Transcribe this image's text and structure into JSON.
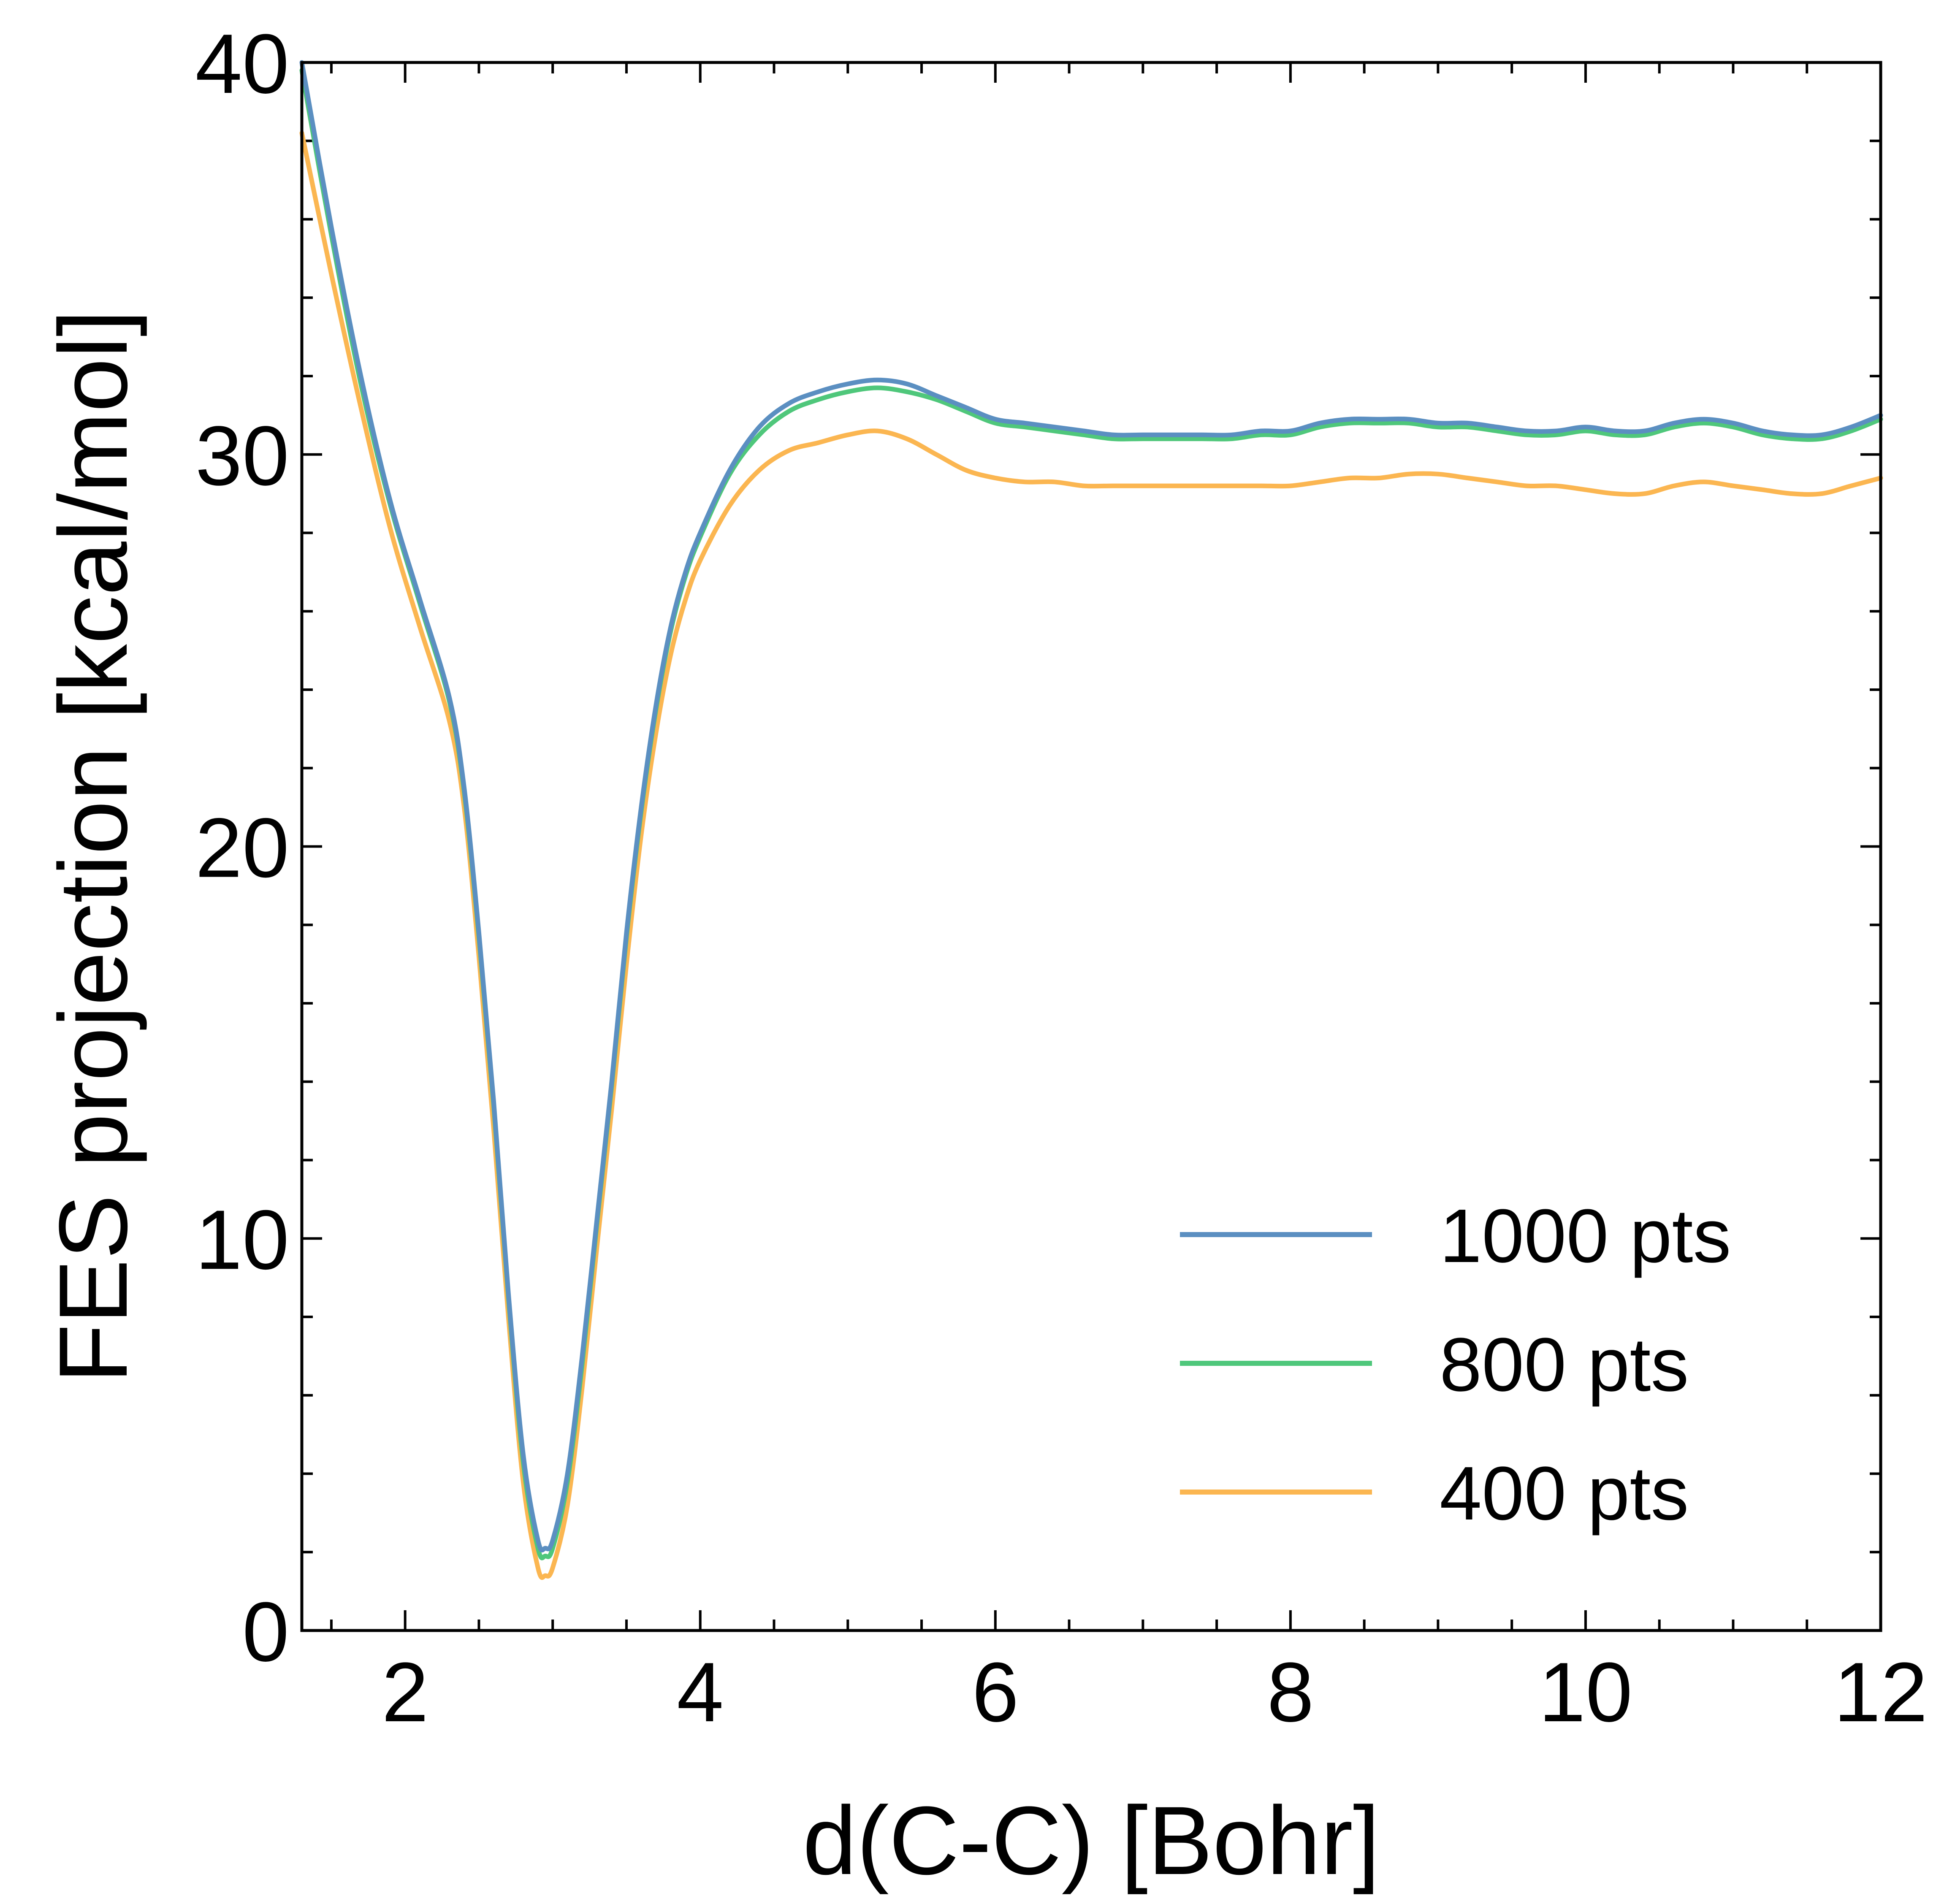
{
  "chart_data": {
    "type": "line",
    "title": "",
    "xlabel": "d(C-C) [Bohr]",
    "ylabel": "FES projection [kcal/mol]",
    "xlim": [
      1.3,
      12
    ],
    "ylim": [
      0,
      40
    ],
    "xticks": [
      2,
      4,
      6,
      8,
      10,
      12
    ],
    "yticks": [
      0,
      10,
      20,
      30,
      40
    ],
    "x_minor_step": 0.5,
    "y_minor_step": 2,
    "grid": false,
    "legend_position": "lower-right",
    "series": [
      {
        "name": "1000 pts",
        "color": "#5b8fc1",
        "points": [
          [
            1.3,
            40.0
          ],
          [
            1.5,
            35.8
          ],
          [
            1.7,
            32.0
          ],
          [
            1.9,
            28.8
          ],
          [
            2.1,
            26.3
          ],
          [
            2.3,
            23.8
          ],
          [
            2.4,
            21.5
          ],
          [
            2.5,
            17.8
          ],
          [
            2.6,
            13.5
          ],
          [
            2.7,
            8.6
          ],
          [
            2.8,
            4.5
          ],
          [
            2.9,
            2.3
          ],
          [
            2.95,
            2.1
          ],
          [
            3.0,
            2.3
          ],
          [
            3.1,
            4.0
          ],
          [
            3.2,
            7.0
          ],
          [
            3.3,
            10.5
          ],
          [
            3.4,
            14.0
          ],
          [
            3.5,
            17.8
          ],
          [
            3.6,
            21.0
          ],
          [
            3.7,
            23.6
          ],
          [
            3.8,
            25.6
          ],
          [
            3.9,
            27.0
          ],
          [
            4.0,
            28.0
          ],
          [
            4.2,
            29.6
          ],
          [
            4.4,
            30.7
          ],
          [
            4.6,
            31.3
          ],
          [
            4.8,
            31.6
          ],
          [
            5.0,
            31.8
          ],
          [
            5.2,
            31.9
          ],
          [
            5.4,
            31.8
          ],
          [
            5.6,
            31.5
          ],
          [
            5.8,
            31.2
          ],
          [
            6.0,
            30.9
          ],
          [
            6.2,
            30.8
          ],
          [
            6.4,
            30.7
          ],
          [
            6.6,
            30.6
          ],
          [
            6.8,
            30.5
          ],
          [
            7.0,
            30.5
          ],
          [
            7.2,
            30.5
          ],
          [
            7.4,
            30.5
          ],
          [
            7.6,
            30.5
          ],
          [
            7.8,
            30.6
          ],
          [
            8.0,
            30.6
          ],
          [
            8.2,
            30.8
          ],
          [
            8.4,
            30.9
          ],
          [
            8.6,
            30.9
          ],
          [
            8.8,
            30.9
          ],
          [
            9.0,
            30.8
          ],
          [
            9.2,
            30.8
          ],
          [
            9.4,
            30.7
          ],
          [
            9.6,
            30.6
          ],
          [
            9.8,
            30.6
          ],
          [
            10.0,
            30.7
          ],
          [
            10.2,
            30.6
          ],
          [
            10.4,
            30.6
          ],
          [
            10.6,
            30.8
          ],
          [
            10.8,
            30.9
          ],
          [
            11.0,
            30.8
          ],
          [
            11.2,
            30.6
          ],
          [
            11.4,
            30.5
          ],
          [
            11.6,
            30.5
          ],
          [
            11.8,
            30.7
          ],
          [
            12.0,
            31.0
          ]
        ]
      },
      {
        "name": "800 pts",
        "color": "#4fc77b",
        "points": [
          [
            1.3,
            39.8
          ],
          [
            1.5,
            35.6
          ],
          [
            1.7,
            31.8
          ],
          [
            1.9,
            28.7
          ],
          [
            2.1,
            26.2
          ],
          [
            2.3,
            23.7
          ],
          [
            2.4,
            21.4
          ],
          [
            2.5,
            17.7
          ],
          [
            2.6,
            13.4
          ],
          [
            2.7,
            8.5
          ],
          [
            2.8,
            4.3
          ],
          [
            2.9,
            2.1
          ],
          [
            2.95,
            1.9
          ],
          [
            3.0,
            2.1
          ],
          [
            3.1,
            3.8
          ],
          [
            3.2,
            6.8
          ],
          [
            3.3,
            10.4
          ],
          [
            3.4,
            13.9
          ],
          [
            3.5,
            17.7
          ],
          [
            3.6,
            20.9
          ],
          [
            3.7,
            23.5
          ],
          [
            3.8,
            25.5
          ],
          [
            3.9,
            26.9
          ],
          [
            4.0,
            27.9
          ],
          [
            4.2,
            29.5
          ],
          [
            4.4,
            30.5
          ],
          [
            4.6,
            31.1
          ],
          [
            4.8,
            31.4
          ],
          [
            5.0,
            31.6
          ],
          [
            5.2,
            31.7
          ],
          [
            5.4,
            31.6
          ],
          [
            5.6,
            31.4
          ],
          [
            5.8,
            31.1
          ],
          [
            6.0,
            30.8
          ],
          [
            6.2,
            30.7
          ],
          [
            6.4,
            30.6
          ],
          [
            6.6,
            30.5
          ],
          [
            6.8,
            30.4
          ],
          [
            7.0,
            30.4
          ],
          [
            7.2,
            30.4
          ],
          [
            7.4,
            30.4
          ],
          [
            7.6,
            30.4
          ],
          [
            7.8,
            30.5
          ],
          [
            8.0,
            30.5
          ],
          [
            8.2,
            30.7
          ],
          [
            8.4,
            30.8
          ],
          [
            8.6,
            30.8
          ],
          [
            8.8,
            30.8
          ],
          [
            9.0,
            30.7
          ],
          [
            9.2,
            30.7
          ],
          [
            9.4,
            30.6
          ],
          [
            9.6,
            30.5
          ],
          [
            9.8,
            30.5
          ],
          [
            10.0,
            30.6
          ],
          [
            10.2,
            30.5
          ],
          [
            10.4,
            30.5
          ],
          [
            10.6,
            30.7
          ],
          [
            10.8,
            30.8
          ],
          [
            11.0,
            30.7
          ],
          [
            11.2,
            30.5
          ],
          [
            11.4,
            30.4
          ],
          [
            11.6,
            30.4
          ],
          [
            11.8,
            30.6
          ],
          [
            12.0,
            30.9
          ]
        ]
      },
      {
        "name": "400 pts",
        "color": "#fbb651",
        "points": [
          [
            1.3,
            38.2
          ],
          [
            1.5,
            34.6
          ],
          [
            1.7,
            31.2
          ],
          [
            1.9,
            28.1
          ],
          [
            2.1,
            25.6
          ],
          [
            2.3,
            23.2
          ],
          [
            2.4,
            21.0
          ],
          [
            2.5,
            17.2
          ],
          [
            2.6,
            12.8
          ],
          [
            2.7,
            8.0
          ],
          [
            2.8,
            3.8
          ],
          [
            2.9,
            1.6
          ],
          [
            2.95,
            1.4
          ],
          [
            3.0,
            1.6
          ],
          [
            3.1,
            3.2
          ],
          [
            3.2,
            6.2
          ],
          [
            3.3,
            9.8
          ],
          [
            3.4,
            13.3
          ],
          [
            3.5,
            17.0
          ],
          [
            3.6,
            20.3
          ],
          [
            3.7,
            22.9
          ],
          [
            3.8,
            24.9
          ],
          [
            3.9,
            26.3
          ],
          [
            4.0,
            27.3
          ],
          [
            4.2,
            28.7
          ],
          [
            4.4,
            29.6
          ],
          [
            4.6,
            30.1
          ],
          [
            4.8,
            30.3
          ],
          [
            5.0,
            30.5
          ],
          [
            5.2,
            30.6
          ],
          [
            5.4,
            30.4
          ],
          [
            5.6,
            30.0
          ],
          [
            5.8,
            29.6
          ],
          [
            6.0,
            29.4
          ],
          [
            6.2,
            29.3
          ],
          [
            6.4,
            29.3
          ],
          [
            6.6,
            29.2
          ],
          [
            6.8,
            29.2
          ],
          [
            7.0,
            29.2
          ],
          [
            7.2,
            29.2
          ],
          [
            7.4,
            29.2
          ],
          [
            7.6,
            29.2
          ],
          [
            7.8,
            29.2
          ],
          [
            8.0,
            29.2
          ],
          [
            8.2,
            29.3
          ],
          [
            8.4,
            29.4
          ],
          [
            8.6,
            29.4
          ],
          [
            8.8,
            29.5
          ],
          [
            9.0,
            29.5
          ],
          [
            9.2,
            29.4
          ],
          [
            9.4,
            29.3
          ],
          [
            9.6,
            29.2
          ],
          [
            9.8,
            29.2
          ],
          [
            10.0,
            29.1
          ],
          [
            10.2,
            29.0
          ],
          [
            10.4,
            29.0
          ],
          [
            10.6,
            29.2
          ],
          [
            10.8,
            29.3
          ],
          [
            11.0,
            29.2
          ],
          [
            11.2,
            29.1
          ],
          [
            11.4,
            29.0
          ],
          [
            11.6,
            29.0
          ],
          [
            11.8,
            29.2
          ],
          [
            12.0,
            29.4
          ]
        ]
      }
    ]
  }
}
